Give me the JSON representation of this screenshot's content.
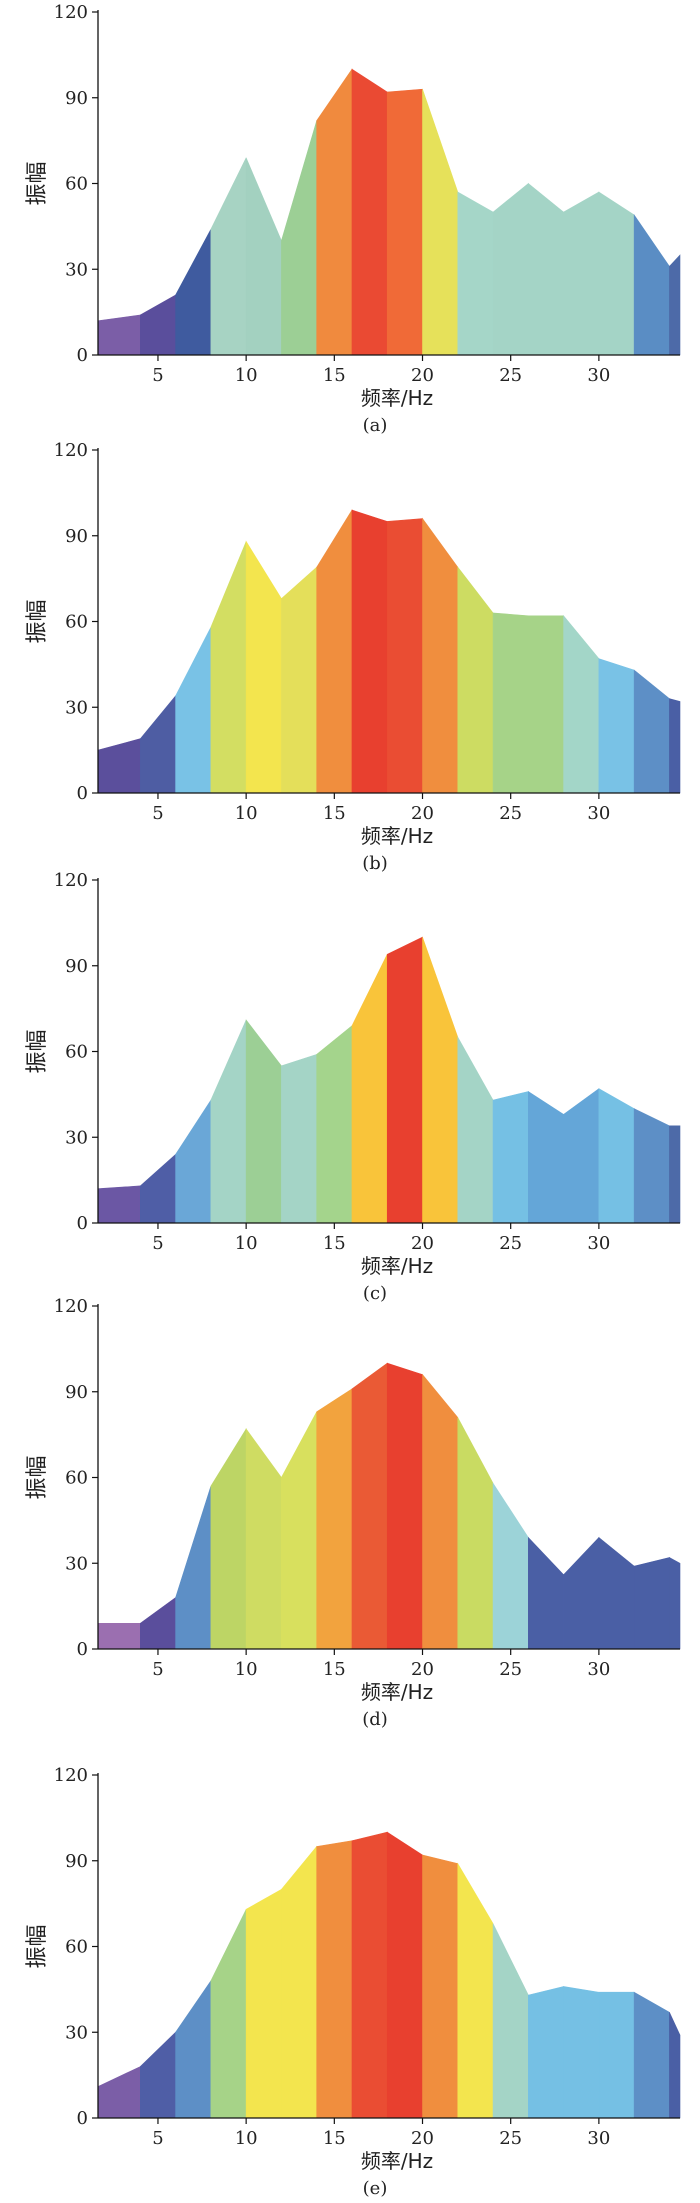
{
  "chart_data": [
    {
      "type": "area",
      "caption": "(a)",
      "xlabel": "频率/Hz",
      "ylabel": "振幅",
      "xlim": [
        1.6,
        34.6
      ],
      "ylim": [
        0,
        120
      ],
      "xticks": [
        "5",
        "10",
        "15",
        "20",
        "25",
        "30"
      ],
      "yticks": [
        "0",
        "30",
        "60",
        "90",
        "120"
      ],
      "x": [
        1.6,
        4,
        6,
        8,
        10,
        12,
        14,
        16,
        18,
        20,
        22,
        24,
        26,
        28,
        30,
        32,
        34,
        34.6
      ],
      "y": [
        12,
        14,
        21,
        44,
        69,
        40,
        82,
        100,
        92,
        93,
        57,
        50,
        60,
        50,
        57,
        49,
        31,
        35
      ],
      "segment_colors": [
        "#7b5ea7",
        "#5a4e9c",
        "#3f5b9f",
        "#a7d3c3",
        "#a3d1c0",
        "#9ccf95",
        "#f08a3e",
        "#ea4a33",
        "#f06a37",
        "#e6e15a",
        "#a5d6c8",
        "#a4d4c6",
        "#a4d4c6",
        "#a4d4c6",
        "#a4d4c6",
        "#5a8dc4",
        "#4d6aa8"
      ]
    },
    {
      "type": "area",
      "caption": "(b)",
      "xlabel": "频率/Hz",
      "ylabel": "振幅",
      "xlim": [
        1.6,
        34.6
      ],
      "ylim": [
        0,
        120
      ],
      "xticks": [
        "5",
        "10",
        "15",
        "20",
        "25",
        "30"
      ],
      "yticks": [
        "0",
        "30",
        "60",
        "90",
        "120"
      ],
      "x": [
        1.6,
        4,
        6,
        8,
        10,
        12,
        14,
        16,
        18,
        20,
        22,
        24,
        26,
        28,
        30,
        32,
        34,
        34.6
      ],
      "y": [
        15,
        19,
        34,
        58,
        88,
        68,
        79,
        99,
        95,
        96,
        79,
        63,
        62,
        62,
        47,
        43,
        33,
        32
      ],
      "segment_colors": [
        "#5b4f9c",
        "#4e5da3",
        "#79c2e6",
        "#d3de62",
        "#f3e54e",
        "#e4df5a",
        "#f08e3e",
        "#e8402f",
        "#ea4d33",
        "#f08e3e",
        "#cddc62",
        "#a6d388",
        "#a6d388",
        "#a3d6c8",
        "#79c2e6",
        "#5d8fc6",
        "#4a5fa5"
      ]
    },
    {
      "type": "area",
      "caption": "(c)",
      "xlabel": "频率/Hz",
      "ylabel": "振幅",
      "xlim": [
        1.6,
        34.6
      ],
      "ylim": [
        0,
        120
      ],
      "xticks": [
        "5",
        "10",
        "15",
        "20",
        "25",
        "30"
      ],
      "yticks": [
        "0",
        "30",
        "60",
        "90",
        "120"
      ],
      "x": [
        1.6,
        4,
        6,
        8,
        10,
        12,
        14,
        16,
        18,
        20,
        22,
        24,
        26,
        28,
        30,
        32,
        34,
        34.6
      ],
      "y": [
        12,
        13,
        24,
        43,
        71,
        55,
        59,
        69,
        94,
        100,
        65,
        43,
        46,
        38,
        47,
        40,
        34,
        34
      ],
      "segment_colors": [
        "#6b57a4",
        "#4f5ea6",
        "#6aa7d7",
        "#a4d4c6",
        "#9ccf95",
        "#a4d4c6",
        "#a4d48c",
        "#f9c43a",
        "#e8402f",
        "#f9c43a",
        "#a4d4c6",
        "#75c0e4",
        "#64a6d8",
        "#64a6d8",
        "#75c0e4",
        "#5d8fc6",
        "#4d6aa8"
      ]
    },
    {
      "type": "area",
      "caption": "(d)",
      "xlabel": "频率/Hz",
      "ylabel": "振幅",
      "xlim": [
        1.6,
        34.6
      ],
      "ylim": [
        0,
        120
      ],
      "xticks": [
        "5",
        "10",
        "15",
        "20",
        "25",
        "30"
      ],
      "yticks": [
        "0",
        "30",
        "60",
        "90",
        "120"
      ],
      "x": [
        1.6,
        4,
        6,
        8,
        10,
        12,
        14,
        16,
        18,
        20,
        22,
        24,
        26,
        28,
        30,
        32,
        34,
        34.6
      ],
      "y": [
        9,
        9,
        18,
        57,
        77,
        60,
        83,
        91,
        100,
        96,
        81,
        58,
        39,
        26,
        39,
        29,
        32,
        30
      ],
      "segment_colors": [
        "#9b6fb0",
        "#5a4e9c",
        "#5d8fc6",
        "#bdd565",
        "#cfdc62",
        "#d8e05e",
        "#f2a33e",
        "#ea5a35",
        "#e8402f",
        "#f08e3e",
        "#c9db62",
        "#9cd3d8",
        "#4a5fa5",
        "#4a5fa5",
        "#4a5fa5",
        "#4a5fa5",
        "#4a5fa5"
      ]
    },
    {
      "type": "area",
      "caption": "(e)",
      "xlabel": "频率/Hz",
      "ylabel": "振幅",
      "xlim": [
        1.6,
        34.6
      ],
      "ylim": [
        0,
        120
      ],
      "xticks": [
        "5",
        "10",
        "15",
        "20",
        "25",
        "30"
      ],
      "yticks": [
        "0",
        "30",
        "60",
        "90",
        "120"
      ],
      "x": [
        1.6,
        4,
        6,
        8,
        10,
        12,
        14,
        16,
        18,
        20,
        22,
        24,
        26,
        28,
        30,
        32,
        34,
        34.6
      ],
      "y": [
        11,
        18,
        30,
        48,
        73,
        80,
        95,
        97,
        100,
        92,
        89,
        68,
        43,
        46,
        44,
        44,
        37,
        29
      ],
      "segment_colors": [
        "#7b5ea7",
        "#4f5ea6",
        "#5d8fc6",
        "#a6d388",
        "#f3e54e",
        "#f3e54e",
        "#f08e3e",
        "#ea4d33",
        "#e8402f",
        "#f08e3e",
        "#f3e54e",
        "#a4d4c6",
        "#75c0e4",
        "#75c0e4",
        "#75c0e4",
        "#5d8fc6",
        "#4a5fa5"
      ]
    }
  ]
}
